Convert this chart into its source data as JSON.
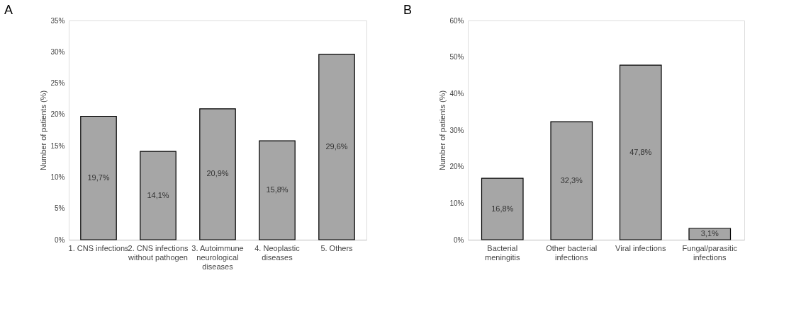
{
  "chart_data": [
    {
      "type": "bar",
      "title": "A",
      "ylabel": "Number of patients (%)",
      "categories": [
        "1. CNS infections",
        "2. CNS infections without pathogen",
        "3. Autoimmune neurological diseases",
        "4. Neoplastic diseases",
        "5. Others"
      ],
      "values": [
        19.7,
        14.1,
        20.9,
        15.8,
        29.6
      ],
      "value_labels": [
        "19,7%",
        "14,1%",
        "20,9%",
        "15,8%",
        "29,6%"
      ],
      "color": "#a6a6a6",
      "ylim": [
        0,
        35
      ],
      "yticks": [
        {
          "value": 0,
          "label": "0%"
        },
        {
          "value": 5,
          "label": "5%"
        },
        {
          "value": 10,
          "label": "10%"
        },
        {
          "value": 15,
          "label": "15%"
        },
        {
          "value": 20,
          "label": "20%"
        },
        {
          "value": 25,
          "label": "25%"
        },
        {
          "value": 30,
          "label": "30%"
        },
        {
          "value": 35,
          "label": "35%"
        }
      ],
      "grid": false
    },
    {
      "type": "bar",
      "title": "B",
      "ylabel": "Number of patients (%)",
      "categories": [
        "Bacterial meningitis",
        "Other bacterial infections",
        "Viral infections",
        "Fungal/parasitic infections"
      ],
      "values": [
        16.8,
        32.3,
        47.8,
        3.1
      ],
      "value_labels": [
        "16,8%",
        "32,3%",
        "47,8%",
        "3,1%"
      ],
      "color": "#a6a6a6",
      "ylim": [
        0,
        60
      ],
      "yticks": [
        {
          "value": 0,
          "label": "0%"
        },
        {
          "value": 10,
          "label": "10%"
        },
        {
          "value": 20,
          "label": "20%"
        },
        {
          "value": 30,
          "label": "30%"
        },
        {
          "value": 40,
          "label": "40%"
        },
        {
          "value": 50,
          "label": "50%"
        },
        {
          "value": 60,
          "label": "60%"
        }
      ],
      "grid": false
    }
  ]
}
